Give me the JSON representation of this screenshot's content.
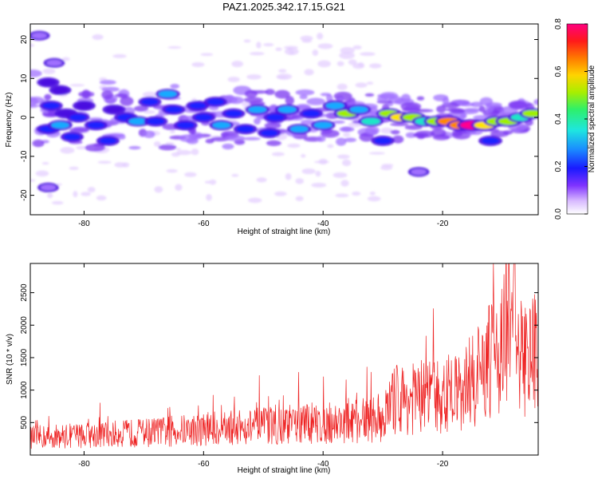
{
  "figure_title": "PAZ1.2025.342.17.15.G21",
  "colors": {
    "snr_line": "#ee2222",
    "colormap": [
      "#ffffff",
      "#e6ccff",
      "#a070ff",
      "#4a10e0",
      "#1a22ff",
      "#12aaff",
      "#1ee6c8",
      "#9ef000",
      "#ffe600",
      "#ff8800",
      "#ff1a1a",
      "#ff0090"
    ]
  },
  "chart_data": [
    {
      "type": "heatmap",
      "id": "spectrogram",
      "xlabel": "Height of straight line (km)",
      "ylabel": "Frequency (Hz)",
      "xlim": [
        -89,
        -4
      ],
      "ylim": [
        -25,
        24
      ],
      "xticks": [
        -80,
        -60,
        -40,
        -20
      ],
      "xtick_labels": [
        "-80",
        "-60",
        "-40",
        "-20"
      ],
      "yticks": [
        20,
        10,
        0,
        -10,
        -20
      ],
      "ytick_labels": [
        "20",
        "10",
        "0",
        "-10",
        "-20"
      ],
      "colorbar": {
        "label": "Normalized spectral amplitude",
        "range": [
          0,
          0.8
        ],
        "ticks": [
          0,
          0.2,
          0.4,
          0.6,
          0.8
        ],
        "tick_labels": [
          "0.0",
          "0.2",
          "0.4",
          "0.6",
          "0.8"
        ]
      },
      "blobs": [
        [
          -87.5,
          21,
          0.04
        ],
        [
          -85,
          14,
          0.05
        ],
        [
          -86,
          9,
          0.15
        ],
        [
          -84,
          7,
          0.12
        ],
        [
          -85.5,
          3,
          0.2
        ],
        [
          -83,
          1,
          0.18
        ],
        [
          -86,
          -3,
          0.25
        ],
        [
          -84,
          -2,
          0.28
        ],
        [
          -81,
          0,
          0.2
        ],
        [
          -80,
          3,
          0.18
        ],
        [
          -82,
          -5,
          0.2
        ],
        [
          -78,
          -2,
          0.22
        ],
        [
          -76,
          -6,
          0.2
        ],
        [
          -75,
          2,
          0.18
        ],
        [
          -73,
          0,
          0.25
        ],
        [
          -71,
          -1,
          0.3
        ],
        [
          -69,
          4,
          0.2
        ],
        [
          -68,
          -1,
          0.25
        ],
        [
          -66,
          6,
          0.3
        ],
        [
          -65,
          2,
          0.22
        ],
        [
          -63,
          -2,
          0.25
        ],
        [
          -61,
          3,
          0.2
        ],
        [
          -60,
          0,
          0.25
        ],
        [
          -58,
          4,
          0.22
        ],
        [
          -57,
          -2,
          0.28
        ],
        [
          -55,
          1,
          0.22
        ],
        [
          -53,
          -3,
          0.25
        ],
        [
          -51,
          2,
          0.3
        ],
        [
          -49,
          -4,
          0.2
        ],
        [
          -48,
          0,
          0.25
        ],
        [
          -46,
          2,
          0.32
        ],
        [
          -44,
          -3,
          0.28
        ],
        [
          -42,
          1,
          0.25
        ],
        [
          -40,
          -2,
          0.3
        ],
        [
          -38,
          3,
          0.32
        ],
        [
          -36,
          1,
          0.45
        ],
        [
          -34,
          2,
          0.3
        ],
        [
          -32,
          -1,
          0.35
        ],
        [
          -30,
          -6,
          0.22
        ],
        [
          -29,
          1,
          0.4
        ],
        [
          -27,
          0,
          0.5
        ],
        [
          -25,
          0,
          0.45
        ],
        [
          -23,
          -1,
          0.38
        ],
        [
          -21,
          -1,
          0.45
        ],
        [
          -19,
          -1,
          0.55
        ],
        [
          -17,
          -2,
          0.6
        ],
        [
          -15,
          -2,
          0.8
        ],
        [
          -13,
          -2,
          0.5
        ],
        [
          -12,
          -6,
          0.25
        ],
        [
          -11,
          -1,
          0.4
        ],
        [
          -9,
          -1,
          0.45
        ],
        [
          -7,
          0,
          0.35
        ],
        [
          -5,
          1,
          0.42
        ],
        [
          -24,
          -14,
          0.05
        ],
        [
          -86,
          -18,
          0.05
        ]
      ]
    },
    {
      "type": "line",
      "id": "snr",
      "xlabel": "Height of straight line (km)",
      "ylabel": "SNR (10 * v/v)",
      "xlim": [
        -89,
        -4
      ],
      "ylim": [
        0,
        2950
      ],
      "xticks": [
        -80,
        -60,
        -40,
        -20
      ],
      "xtick_labels": [
        "-80",
        "-60",
        "-40",
        "-20"
      ],
      "yticks": [
        500,
        1000,
        1500,
        2000,
        2500
      ],
      "ytick_labels": [
        "500",
        "1000",
        "1500",
        "2000",
        "2500"
      ],
      "series": [
        {
          "name": "SNR",
          "x": [
            -89,
            -85,
            -80,
            -75,
            -70,
            -65,
            -60,
            -55,
            -50,
            -45,
            -40,
            -35,
            -30,
            -28,
            -25,
            -20,
            -18,
            -15,
            -12,
            -11,
            -10,
            -9,
            -8,
            -7,
            -6,
            -5,
            -4
          ],
          "y": [
            220,
            230,
            250,
            260,
            280,
            300,
            320,
            340,
            360,
            380,
            390,
            410,
            460,
            680,
            700,
            720,
            750,
            900,
            1150,
            1300,
            1400,
            1600,
            1250,
            1200,
            1150,
            1250,
            1350
          ],
          "peak_x": -8,
          "peak_y": 2950
        }
      ]
    }
  ]
}
